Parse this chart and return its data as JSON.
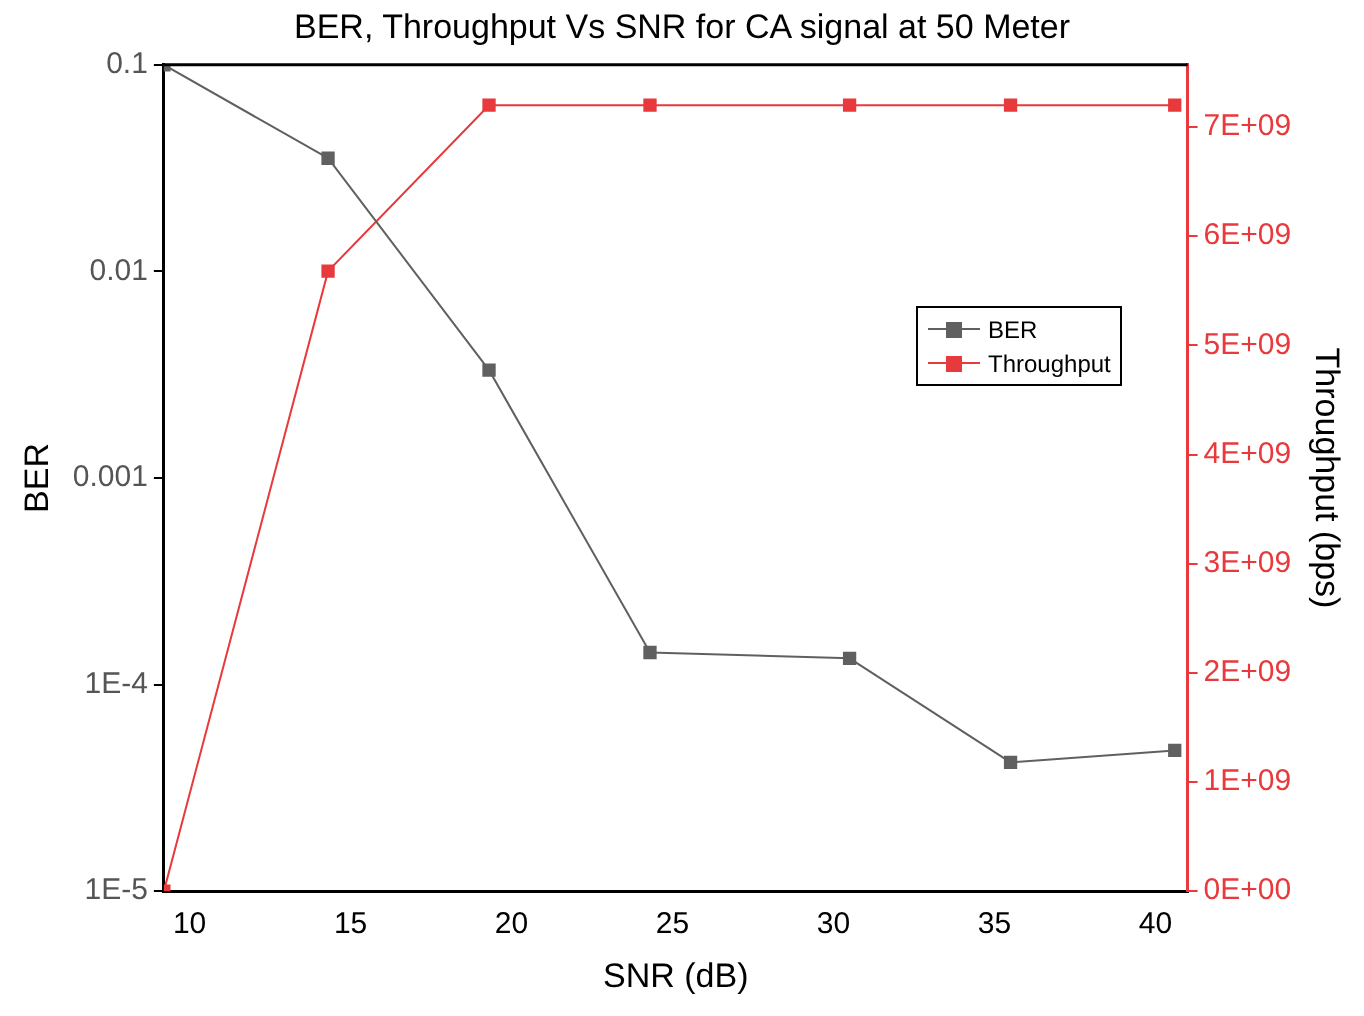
{
  "chart_data": {
    "type": "line",
    "title": "BER, Throughput Vs SNR for CA signal at 50 Meter",
    "xlabel": "SNR (dB)",
    "ylabel": "BER",
    "y2label": "Throughput (bps)",
    "x": [
      9.2,
      14.3,
      19.3,
      24.3,
      30.5,
      35.5,
      40.6
    ],
    "xlim": [
      9.2,
      41
    ],
    "xticks": [
      10,
      15,
      20,
      25,
      30,
      35,
      40
    ],
    "log": "y",
    "ylim": [
      1e-05,
      0.1
    ],
    "yticks": [
      {
        "value": 1e-05,
        "label": "1E-5"
      },
      {
        "value": 0.0001,
        "label": "1E-4"
      },
      {
        "value": 0.001,
        "label": "0.001"
      },
      {
        "value": 0.01,
        "label": "0.01"
      },
      {
        "value": 0.1,
        "label": "0.1"
      }
    ],
    "y2lim": [
      0,
      7570000000.0
    ],
    "y2ticks": [
      {
        "value": 0,
        "label": "0E+00"
      },
      {
        "value": 1000000000.0,
        "label": "1E+09"
      },
      {
        "value": 2000000000.0,
        "label": "2E+09"
      },
      {
        "value": 3000000000.0,
        "label": "3E+09"
      },
      {
        "value": 4000000000.0,
        "label": "4E+09"
      },
      {
        "value": 5000000000.0,
        "label": "5E+09"
      },
      {
        "value": 6000000000.0,
        "label": "6E+09"
      },
      {
        "value": 7000000000.0,
        "label": "7E+09"
      }
    ],
    "series": [
      {
        "name": "BER",
        "color": "#606060",
        "values": [
          0.1,
          0.0353,
          0.00333,
          0.000143,
          0.000134,
          4.2e-05,
          4.8e-05
        ]
      },
      {
        "name": "Throughput",
        "color": "#e8393c",
        "axis": "y2",
        "values": [
          0,
          5680000000.0,
          7200000000.0,
          7200000000.0,
          7200000000.0,
          7200000000.0,
          7200000000.0
        ]
      }
    ],
    "grid": false,
    "legend": "top right",
    "marker": "square",
    "line_style": "solid"
  }
}
